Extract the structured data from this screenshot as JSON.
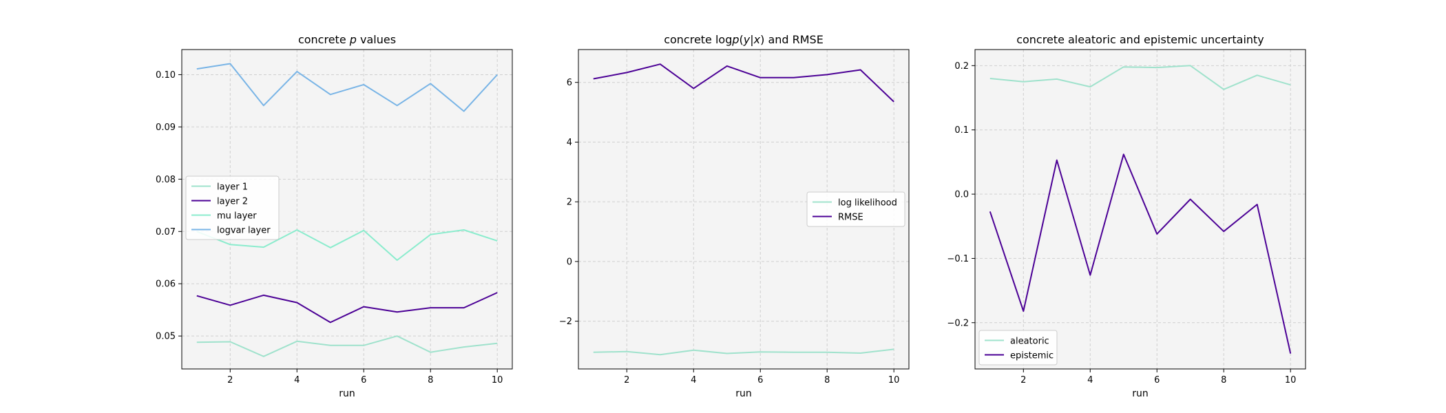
{
  "chart_data": [
    {
      "type": "line",
      "title": "concrete p values",
      "title_parts": [
        "concrete ",
        "p",
        " values"
      ],
      "xlabel": "run",
      "ylabel": "",
      "xlim": [
        0.55,
        10.45
      ],
      "ylim": [
        0.0437,
        0.1048
      ],
      "xticks": [
        2,
        4,
        6,
        8,
        10
      ],
      "yticks": [
        0.05,
        0.06,
        0.07,
        0.08,
        0.09,
        0.1
      ],
      "ytick_labels": [
        "0.05",
        "0.06",
        "0.07",
        "0.08",
        "0.09",
        "0.10"
      ],
      "grid": true,
      "legend_position": "center-left",
      "x": [
        1,
        2,
        3,
        4,
        5,
        6,
        7,
        8,
        9,
        10
      ],
      "series": [
        {
          "name": "layer 1",
          "color": "#9fe2cc",
          "values": [
            0.0488,
            0.0489,
            0.0461,
            0.049,
            0.0482,
            0.0482,
            0.05,
            0.0469,
            0.0479,
            0.0486
          ]
        },
        {
          "name": "layer 2",
          "color": "#4b0095",
          "values": [
            0.0577,
            0.0559,
            0.0578,
            0.0564,
            0.0526,
            0.0556,
            0.0546,
            0.0554,
            0.0554,
            0.0583
          ]
        },
        {
          "name": "mu layer",
          "color": "#8aeccd",
          "values": [
            0.07,
            0.0675,
            0.067,
            0.0703,
            0.0669,
            0.0702,
            0.0645,
            0.0694,
            0.0703,
            0.0682
          ]
        },
        {
          "name": "logvar layer",
          "color": "#78b4e6",
          "values": [
            0.1011,
            0.1021,
            0.0941,
            0.1006,
            0.0962,
            0.0981,
            0.0941,
            0.0983,
            0.093,
            0.1
          ]
        }
      ]
    },
    {
      "type": "line",
      "title": "concrete log p(y|x) and RMSE",
      "title_parts": [
        "concrete log",
        "p",
        "(",
        "y",
        "|",
        "x",
        ") and RMSE"
      ],
      "xlabel": "run",
      "ylabel": "",
      "xlim": [
        0.55,
        10.45
      ],
      "ylim": [
        -3.6,
        7.1
      ],
      "xticks": [
        2,
        4,
        6,
        8,
        10
      ],
      "yticks": [
        -2,
        0,
        2,
        4,
        6
      ],
      "ytick_labels": [
        "−2",
        "0",
        "2",
        "4",
        "6"
      ],
      "grid": true,
      "legend_position": "center-right",
      "x": [
        1,
        2,
        3,
        4,
        5,
        6,
        7,
        8,
        9,
        10
      ],
      "series": [
        {
          "name": "log likelihood",
          "color": "#9fe2cc",
          "values": [
            -3.04,
            -3.02,
            -3.12,
            -2.97,
            -3.08,
            -3.03,
            -3.04,
            -3.04,
            -3.07,
            -2.94
          ]
        },
        {
          "name": "RMSE",
          "color": "#4b0095",
          "values": [
            6.12,
            6.33,
            6.61,
            5.8,
            6.55,
            6.16,
            6.16,
            6.26,
            6.42,
            5.35
          ]
        }
      ]
    },
    {
      "type": "line",
      "title": "concrete aleatoric and epistemic uncertainty",
      "xlabel": "run",
      "ylabel": "",
      "xlim": [
        0.55,
        10.45
      ],
      "ylim": [
        -0.272,
        0.225
      ],
      "xticks": [
        2,
        4,
        6,
        8,
        10
      ],
      "yticks": [
        -0.2,
        -0.1,
        0.0,
        0.1,
        0.2
      ],
      "ytick_labels": [
        "−0.2",
        "−0.1",
        "0.0",
        "0.1",
        "0.2"
      ],
      "grid": true,
      "legend_position": "lower-left",
      "x": [
        1,
        2,
        3,
        4,
        5,
        6,
        7,
        8,
        9,
        10
      ],
      "series": [
        {
          "name": "aleatoric",
          "color": "#9fe2cc",
          "values": [
            0.18,
            0.175,
            0.179,
            0.167,
            0.198,
            0.197,
            0.2,
            0.163,
            0.185,
            0.17
          ]
        },
        {
          "name": "epistemic",
          "color": "#4b0095",
          "values": [
            -0.027,
            -0.182,
            0.053,
            -0.126,
            0.062,
            -0.062,
            -0.008,
            -0.058,
            -0.016,
            -0.248
          ]
        }
      ]
    }
  ]
}
